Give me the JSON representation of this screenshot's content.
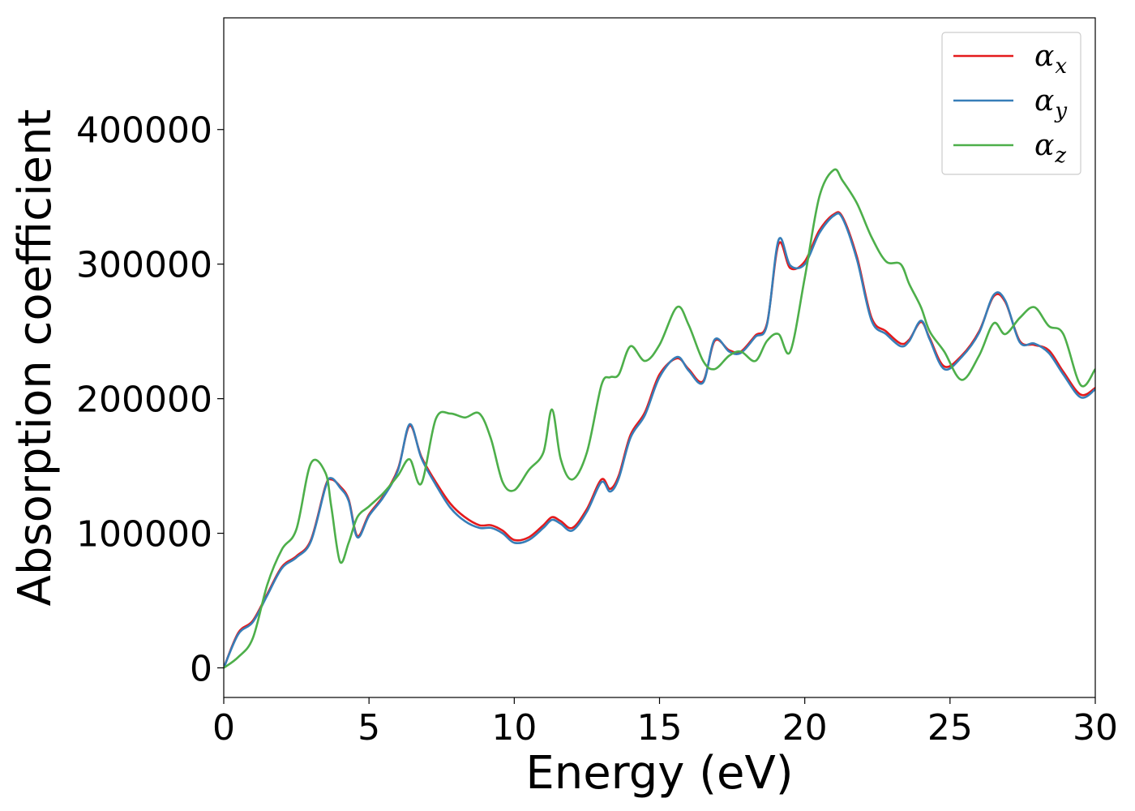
{
  "chart_data": {
    "type": "line",
    "xlabel": "Energy (eV)",
    "ylabel": "Absorption coefficient",
    "xlim": [
      0,
      30
    ],
    "ylim": [
      -22000,
      483000
    ],
    "xticks": [
      0,
      5,
      10,
      15,
      20,
      25,
      30
    ],
    "yticks": [
      0,
      100000,
      200000,
      300000,
      400000
    ],
    "grid": false,
    "legend_position": "top-right",
    "x": [
      0,
      0.5,
      1,
      1.5,
      2,
      2.5,
      3,
      3.5,
      3.7,
      4,
      4.3,
      4.6,
      5,
      5.5,
      6,
      6.4,
      6.8,
      7.3,
      7.8,
      8.3,
      8.8,
      9.2,
      9.6,
      10,
      10.5,
      11,
      11.3,
      11.6,
      12,
      12.5,
      13,
      13.3,
      13.6,
      14,
      14.5,
      15,
      15.6,
      16,
      16.5,
      16.9,
      17.4,
      17.8,
      18.3,
      18.7,
      19.1,
      19.5,
      20,
      20.5,
      21,
      21.3,
      21.8,
      22.3,
      22.8,
      23.3,
      23.6,
      24,
      24.3,
      24.8,
      25.4,
      26,
      26.5,
      26.9,
      27.4,
      27.9,
      28.4,
      28.9,
      29.5,
      30
    ],
    "series": [
      {
        "name": "α_x",
        "label_base": "α",
        "label_sub": "x",
        "color": "#e41a1c",
        "y": [
          0,
          26000,
          35000,
          55000,
          75000,
          83000,
          95000,
          135000,
          140000,
          135000,
          125000,
          98000,
          114000,
          128000,
          148000,
          180000,
          157000,
          138000,
          122000,
          112000,
          106000,
          106000,
          102000,
          95000,
          97000,
          106000,
          112000,
          109000,
          104000,
          118000,
          140000,
          133000,
          143000,
          173000,
          190000,
          218000,
          230000,
          222000,
          213000,
          243000,
          236000,
          235000,
          247000,
          256000,
          315000,
          297000,
          302000,
          325000,
          337000,
          335000,
          305000,
          260000,
          250000,
          241000,
          244000,
          257000,
          245000,
          224000,
          232000,
          250000,
          276000,
          272000,
          243000,
          240000,
          236000,
          220000,
          203000,
          208000
        ]
      },
      {
        "name": "α_y",
        "label_base": "α",
        "label_sub": "y",
        "color": "#377eb8",
        "y": [
          0,
          25000,
          34000,
          54000,
          74000,
          82000,
          94000,
          134000,
          141000,
          134000,
          124000,
          97000,
          113000,
          127000,
          147000,
          181000,
          156000,
          136000,
          119000,
          109000,
          104000,
          104000,
          100000,
          93000,
          95000,
          104000,
          110000,
          107000,
          102000,
          116000,
          138000,
          131000,
          141000,
          171000,
          188000,
          216000,
          231000,
          221000,
          212000,
          244000,
          235000,
          234000,
          246000,
          255000,
          318000,
          299000,
          300000,
          323000,
          336000,
          334000,
          303000,
          258000,
          248000,
          239000,
          243000,
          258000,
          244000,
          222000,
          231000,
          249000,
          277000,
          273000,
          242000,
          241000,
          234000,
          218000,
          201000,
          207000
        ]
      },
      {
        "name": "α_z",
        "label_base": "α",
        "label_sub": "z",
        "color": "#4daf4a",
        "y": [
          0,
          8000,
          22000,
          62000,
          88000,
          103000,
          152000,
          145000,
          120000,
          79000,
          93000,
          112000,
          120000,
          130000,
          143000,
          155000,
          137000,
          185000,
          189000,
          186000,
          189000,
          170000,
          138000,
          132000,
          147000,
          160000,
          192000,
          155000,
          140000,
          160000,
          210000,
          216000,
          218000,
          239000,
          228000,
          240000,
          268000,
          255000,
          228000,
          222000,
          232000,
          235000,
          228000,
          243000,
          248000,
          235000,
          290000,
          350000,
          370000,
          362000,
          345000,
          320000,
          302000,
          300000,
          285000,
          268000,
          250000,
          235000,
          214000,
          232000,
          256000,
          248000,
          260000,
          268000,
          254000,
          248000,
          210000,
          222000
        ]
      }
    ]
  }
}
